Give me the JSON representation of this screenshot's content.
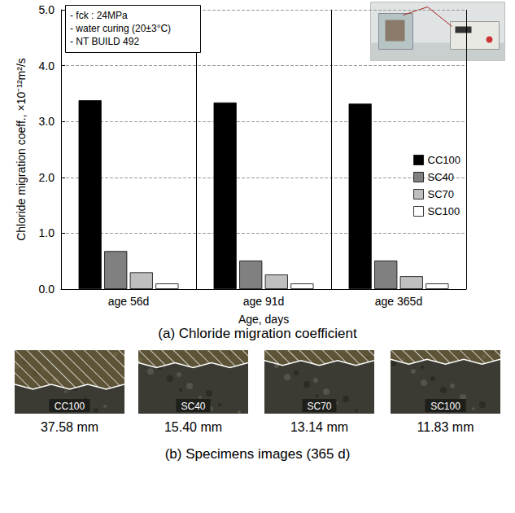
{
  "chart_data": {
    "type": "bar",
    "title": "(a) Chloride migration coefficient",
    "annotations": [
      "- fck : 24MPa",
      "- water curing (20±3°C)",
      "- NT BUILD 492"
    ],
    "x_label": "Age, days",
    "y_label": "Chloride migration coeff., ×10⁻¹²m²/s",
    "categories": [
      "age 56d",
      "age 91d",
      "age 365d"
    ],
    "series": [
      {
        "name": "CC100",
        "color": "#000000",
        "values": [
          3.38,
          3.34,
          3.32
        ]
      },
      {
        "name": "SC40",
        "color": "#808080",
        "values": [
          0.68,
          0.51,
          0.51
        ]
      },
      {
        "name": "SC70",
        "color": "#bfbfbf",
        "values": [
          0.3,
          0.26,
          0.23
        ]
      },
      {
        "name": "SC100",
        "color": "#ffffff",
        "values": [
          0.1,
          0.1,
          0.1
        ]
      }
    ],
    "ylim": [
      0,
      5
    ],
    "yticks": [
      {
        "value": 0,
        "label": "0.0"
      },
      {
        "value": 1,
        "label": "1.0"
      },
      {
        "value": 2,
        "label": "2.0"
      },
      {
        "value": 3,
        "label": "3.0"
      },
      {
        "value": 4,
        "label": "4.0"
      },
      {
        "value": 5,
        "label": "5.0"
      }
    ],
    "grid": true,
    "legend": "right"
  },
  "specimens": {
    "caption": "(b) Specimens images (365 d)",
    "items": [
      {
        "label": "CC100",
        "depth": "37.58 mm"
      },
      {
        "label": "SC40",
        "depth": "15.40 mm"
      },
      {
        "label": "SC70",
        "depth": "13.14 mm"
      },
      {
        "label": "SC100",
        "depth": "11.83 mm"
      }
    ]
  }
}
